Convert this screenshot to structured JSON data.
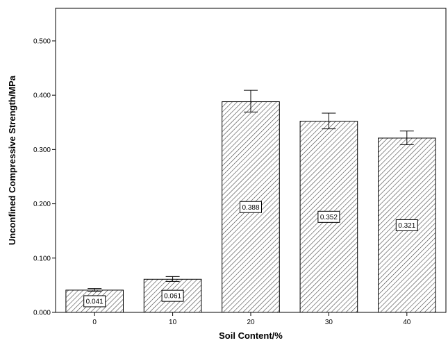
{
  "chart_data": {
    "type": "bar",
    "title": "",
    "xlabel": "Soil Content/%",
    "ylabel": "Unconfined Compressive Strength/MPa",
    "categories": [
      "0",
      "10",
      "20",
      "30",
      "40"
    ],
    "values": [
      0.041,
      0.061,
      0.388,
      0.352,
      0.321
    ],
    "data_labels": [
      "0.041",
      "0.061",
      "0.388",
      "0.352",
      "0.321"
    ],
    "error_low": [
      0.039,
      0.057,
      0.369,
      0.338,
      0.309
    ],
    "error_high": [
      0.044,
      0.066,
      0.409,
      0.367,
      0.334
    ],
    "ylim": [
      0,
      0.56
    ],
    "yticks": [
      0.0,
      0.1,
      0.2,
      0.3,
      0.4,
      0.5
    ],
    "ytick_labels": [
      "0.000",
      "0.100",
      "0.200",
      "0.300",
      "0.400",
      "0.500"
    ],
    "bar_pattern": "diagonal-hatch",
    "grid": false,
    "legend": "none"
  }
}
